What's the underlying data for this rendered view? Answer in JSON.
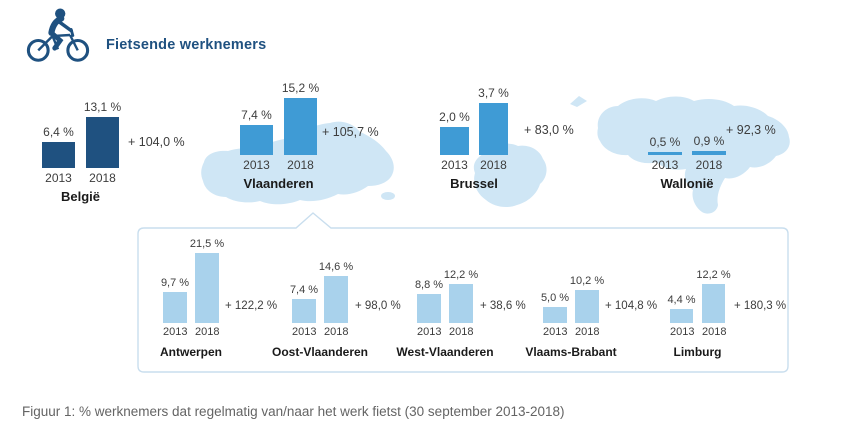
{
  "header": {
    "title": "Fietsende werknemers",
    "icon": "cyclist-icon"
  },
  "caption": "Figuur 1: % werknemers dat regelmatig van/naar het werk fietst (30 september 2013-2018)",
  "colors": {
    "dark_blue": "#1f5180",
    "medium_blue": "#3f9bd5",
    "light_blue": "#a9d2ec",
    "map_fill": "#cfe6f5",
    "panel_border": "#c9deee",
    "text_gray": "#3d3d3d",
    "caption_gray": "#646464"
  },
  "chart_data": {
    "type": "bar",
    "title": "Fietsende werknemers",
    "subtitle": "Figuur 1: % werknemers dat regelmatig van/naar het werk fietst (30 september 2013-2018)",
    "categories": [
      "2013",
      "2018"
    ],
    "unit": "%",
    "legend_position": "none",
    "grid": false,
    "groups": [
      {
        "name": "België",
        "row": "top",
        "values": [
          6.4,
          13.1
        ],
        "labels": [
          "6,4 %",
          "13,1 %"
        ],
        "growth": "+ 104,0 %",
        "color": "#1f5180"
      },
      {
        "name": "Vlaanderen",
        "row": "top",
        "values": [
          7.4,
          15.2
        ],
        "labels": [
          "7,4 %",
          "15,2 %"
        ],
        "growth": "+ 105,7 %",
        "color": "#3f9bd5"
      },
      {
        "name": "Brussel",
        "row": "top",
        "values": [
          2.0,
          3.7
        ],
        "labels": [
          "2,0 %",
          "3,7 %"
        ],
        "growth": "+ 83,0 %",
        "color": "#3f9bd5"
      },
      {
        "name": "Wallonië",
        "row": "top",
        "values": [
          0.5,
          0.9
        ],
        "labels": [
          "0,5 %",
          "0,9 %"
        ],
        "growth": "+ 92,3 %",
        "color": "#3f9bd5"
      },
      {
        "name": "Antwerpen",
        "row": "bottom",
        "values": [
          9.7,
          21.5
        ],
        "labels": [
          "9,7 %",
          "21,5 %"
        ],
        "growth": "+ 122,2 %",
        "color": "#a9d2ec"
      },
      {
        "name": "Oost-Vlaanderen",
        "row": "bottom",
        "values": [
          7.4,
          14.6
        ],
        "labels": [
          "7,4 %",
          "14,6 %"
        ],
        "growth": "+ 98,0 %",
        "color": "#a9d2ec"
      },
      {
        "name": "West-Vlaanderen",
        "row": "bottom",
        "values": [
          8.8,
          12.2
        ],
        "labels": [
          "8,8 %",
          "12,2 %"
        ],
        "growth": "+ 38,6 %",
        "color": "#a9d2ec"
      },
      {
        "name": "Vlaams-Brabant",
        "row": "bottom",
        "values": [
          5.0,
          10.2
        ],
        "labels": [
          "5,0 %",
          "10,2 %"
        ],
        "growth": "+ 104,8 %",
        "color": "#a9d2ec"
      },
      {
        "name": "Limburg",
        "row": "bottom",
        "values": [
          4.4,
          12.2
        ],
        "labels": [
          "4,4 %",
          "12,2 %"
        ],
        "growth": "+ 180,3 %",
        "color": "#a9d2ec"
      }
    ]
  }
}
